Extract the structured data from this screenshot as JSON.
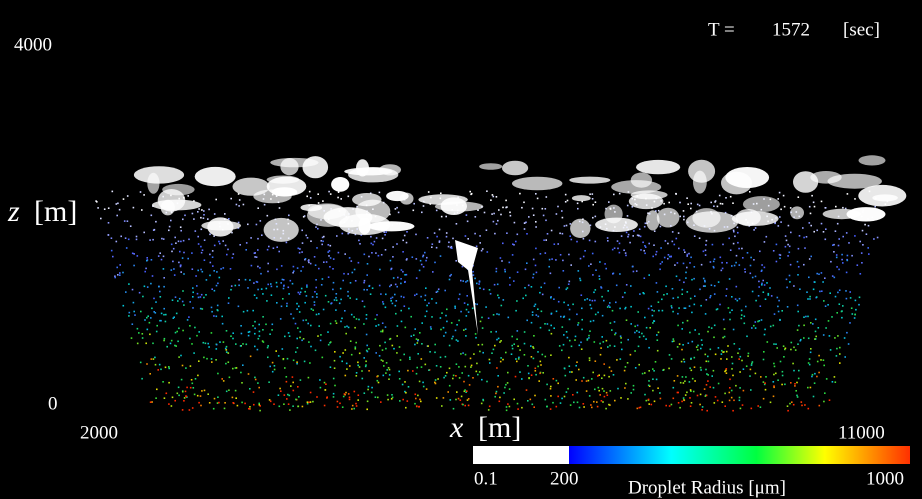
{
  "header": {
    "time_label": "T =",
    "time_value": 1572,
    "time_unit": "[sec]"
  },
  "z_axis": {
    "variable": "z",
    "unit": "[m]",
    "top": 4000,
    "bottom": 0
  },
  "x_axis": {
    "variable": "x",
    "unit": "[m]",
    "left": 2000,
    "right": 11000
  },
  "colorbar": {
    "min": 0.1,
    "mid": 200,
    "max": 1000,
    "label": "Droplet Radius [μm]"
  }
}
